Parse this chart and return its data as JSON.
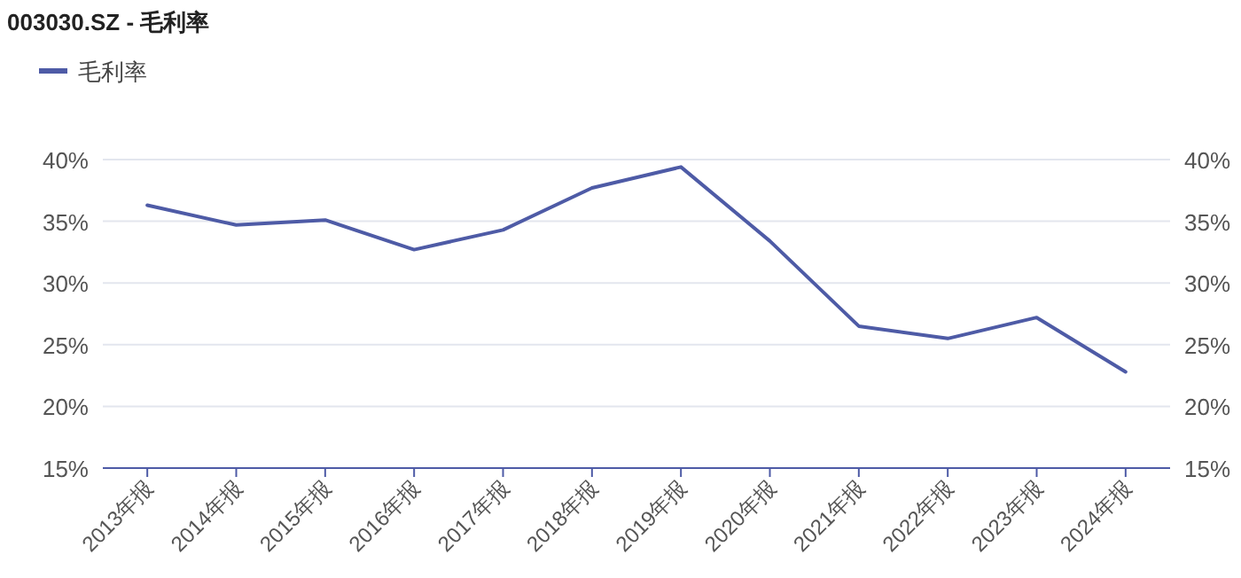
{
  "chart_data": {
    "type": "line",
    "title": "003030.SZ - 毛利率",
    "categories": [
      "2013年报",
      "2014年报",
      "2015年报",
      "2016年报",
      "2017年报",
      "2018年报",
      "2019年报",
      "2020年报",
      "2021年报",
      "2022年报",
      "2023年报",
      "2024年报"
    ],
    "series": [
      {
        "name": "毛利率",
        "color": "#4e5ba6",
        "values": [
          36.3,
          34.7,
          35.1,
          32.7,
          34.3,
          37.7,
          39.4,
          33.4,
          26.5,
          25.5,
          27.2,
          22.8
        ]
      }
    ],
    "ylim": [
      15,
      40
    ],
    "yticks": [
      {
        "value": 15,
        "label": "15%"
      },
      {
        "value": 20,
        "label": "20%"
      },
      {
        "value": 25,
        "label": "25%"
      },
      {
        "value": 30,
        "label": "30%"
      },
      {
        "value": 35,
        "label": "35%"
      },
      {
        "value": 40,
        "label": "40%"
      }
    ],
    "y2lim": [
      15,
      40
    ],
    "y2ticks": [
      {
        "value": 15,
        "label": "15%"
      },
      {
        "value": 20,
        "label": "20%"
      },
      {
        "value": 25,
        "label": "25%"
      },
      {
        "value": 30,
        "label": "30%"
      },
      {
        "value": 35,
        "label": "35%"
      },
      {
        "value": 40,
        "label": "40%"
      }
    ],
    "grid": "y",
    "legend": "top left",
    "marker": "none",
    "line_style": "solid"
  }
}
